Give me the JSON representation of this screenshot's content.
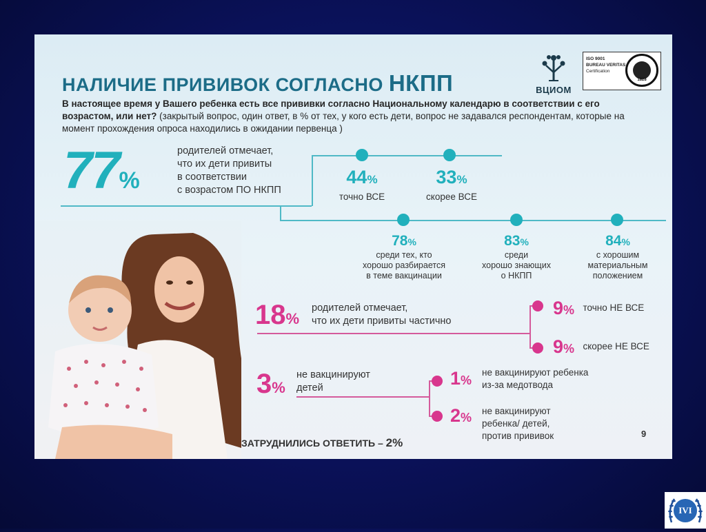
{
  "header": {
    "title_part1": "НАЛИЧИЕ ПРИВИВОК СОГЛАСНО ",
    "title_part2": "НКПП",
    "question_bold": "В настоящее время у Вашего ребенка есть все прививки согласно Национальному календарю в соответствии с его возрастом, или нет?",
    "question_note": " (закрытый вопрос, один ответ, в % от тех, у кого есть дети, вопрос не задавался респондентам, которые на момент прохождения опроса находились в ожидании первенца )"
  },
  "logos": {
    "vciom": "ВЦИОМ",
    "cert_line1": "ISO 9001",
    "cert_line2": "BUREAU VERITAS",
    "cert_line3": "Certification",
    "bv_year": "1828"
  },
  "main_stat": {
    "value": "77",
    "unit": "%",
    "text_line1": "родителей отмечает,",
    "text_line2": "что их дети привиты",
    "text_line3": "в соответствии",
    "text_line4": "с  возрастом ПО НКПП"
  },
  "sub_stats": [
    {
      "value": "44",
      "unit": "%",
      "label": "точно ВСЕ"
    },
    {
      "value": "33",
      "unit": "%",
      "label": "скорее ВСЕ"
    }
  ],
  "groups": [
    {
      "value": "78",
      "unit": "%",
      "l1": "среди тех, кто",
      "l2": "хорошо разбирается",
      "l3": "в теме вакцинации"
    },
    {
      "value": "83",
      "unit": "%",
      "l1": "среди",
      "l2": "хорошо знающих",
      "l3": "о НКПП"
    },
    {
      "value": "84",
      "unit": "%",
      "l1": "с хорошим",
      "l2": "материальным",
      "l3": "положением"
    }
  ],
  "partial": {
    "value": "18",
    "unit": "%",
    "line1": "родителей отмечает,",
    "line2": "что их дети привиты частично",
    "items": [
      {
        "value": "9",
        "unit": "%",
        "label": "точно НЕ ВСЕ"
      },
      {
        "value": "9",
        "unit": "%",
        "label": "скорее НЕ ВСЕ"
      }
    ]
  },
  "none": {
    "value": "3",
    "unit": "%",
    "line1": "не вакцинируют",
    "line2": "детей",
    "items": [
      {
        "value": "1",
        "unit": "%",
        "l1": "не вакцинируют ребенка",
        "l2": "из-за медотвода",
        "l3": ""
      },
      {
        "value": "2",
        "unit": "%",
        "l1": "не вакцинируют",
        "l2": "ребенка/ детей,",
        "l3": "против прививок"
      }
    ]
  },
  "footer": {
    "hard_label": "ЗАТРУДНИЛИСЬ ОТВЕТИТЬ – ",
    "hard_value": "2%",
    "page_number": "9",
    "ivi_logo": "IVI"
  },
  "colors": {
    "teal": "#21b0bc",
    "title": "#1c6c87",
    "pink": "#d8368d",
    "navy_background": "#0a1158"
  }
}
